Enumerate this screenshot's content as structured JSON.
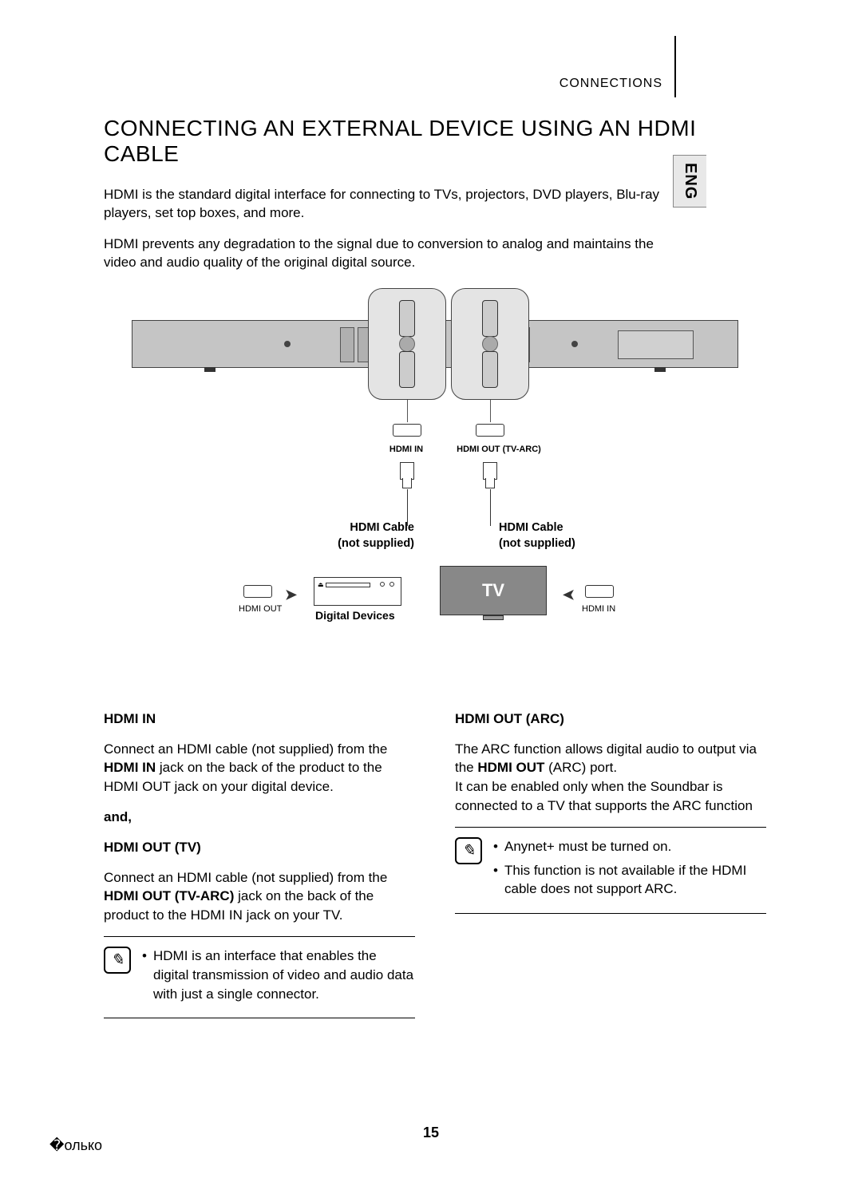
{
  "header": {
    "section": "CONNECTIONS",
    "lang": "ENG"
  },
  "title": "CONNECTING AN EXTERNAL DEVICE USING AN HDMI CABLE",
  "intro": {
    "p1": "HDMI is the standard digital interface for connecting to TVs, projectors, DVD players, Blu-ray players, set top boxes, and more.",
    "p2": "HDMI prevents any degradation to the signal due to conversion to analog and maintains the video and audio quality of the original digital source."
  },
  "diagram": {
    "hdmi_in_label": "HDMI IN",
    "hdmi_out_label": "HDMI OUT (TV-ARC)",
    "cable_label_left_l1": "HDMI Cable",
    "cable_label_left_l2": "(not supplied)",
    "cable_label_right_l1": "HDMI Cable",
    "cable_label_right_l2": "(not supplied)",
    "hdmi_out_small": "HDMI OUT",
    "hdmi_in_small": "HDMI  IN",
    "digital_devices": "Digital Devices",
    "tv": "TV"
  },
  "left_col": {
    "h1": "HDMI IN",
    "p1a": "Connect an HDMI cable (not supplied) from the ",
    "p1b": "HDMI IN",
    "p1c": " jack on the back of the product to the HDMI OUT jack on your digital device.",
    "and": "and,",
    "h2": "HDMI OUT (TV)",
    "p2a": "Connect an HDMI cable (not supplied) from the ",
    "p2b": "HDMI OUT (TV-ARC)",
    "p2c": " jack on the back of the product to the HDMI IN jack on your TV.",
    "note1": "HDMI is an interface that enables the digital transmission of video and audio data with just a single connector."
  },
  "right_col": {
    "h1": "HDMI OUT (ARC)",
    "p1a": "The ARC function allows digital audio to output via the ",
    "p1b": "HDMI OUT",
    "p1c": " (ARC) port.",
    "p2": "It can be enabled only when the Soundbar is connected to a TV that supports the ARC function",
    "note1": "Anynet+ must be turned on.",
    "note2": "This function is not available if the HDMI cable does not support ARC."
  },
  "page_number": "15"
}
